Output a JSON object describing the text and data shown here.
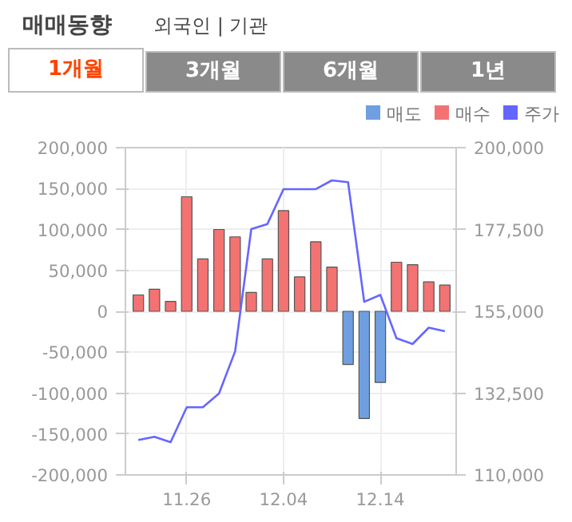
{
  "chart_data": {
    "type": "bar",
    "title": "매매동향",
    "subtitle": "외국인 | 기관",
    "annotations": [
      "1개월",
      "3개월",
      "6개월",
      "1년"
    ],
    "categories": [
      null,
      null,
      null,
      "11.26",
      null,
      null,
      null,
      null,
      null,
      "12.04",
      null,
      null,
      null,
      null,
      null,
      "12.14",
      null,
      null,
      null,
      null
    ],
    "series": [
      {
        "name": "매도",
        "color": "#6f9fe0",
        "values": [
          null,
          null,
          null,
          null,
          null,
          null,
          null,
          null,
          null,
          null,
          null,
          null,
          null,
          -65000,
          -131000,
          -87000,
          null,
          null,
          null,
          null
        ]
      },
      {
        "name": "매수",
        "color": "#f37372",
        "values": [
          20000,
          27000,
          12000,
          140000,
          64000,
          100000,
          91000,
          23000,
          64000,
          123000,
          42000,
          85000,
          54000,
          null,
          null,
          null,
          60000,
          57000,
          36000,
          32000
        ]
      },
      {
        "name": "주가",
        "type": "line",
        "axis": "y2",
        "color": "#6666ff",
        "values": [
          119600,
          120500,
          119000,
          128600,
          128600,
          132400,
          144000,
          177600,
          179000,
          188600,
          188600,
          188600,
          191000,
          190500,
          157600,
          159500,
          147600,
          146000,
          150500,
          149500
        ]
      }
    ],
    "ylim": [
      -200000,
      200000
    ],
    "yticks": [
      {
        "value": -200000,
        "label": "-200,000"
      },
      {
        "value": -150000,
        "label": "-150,000"
      },
      {
        "value": -100000,
        "label": "-100,000"
      },
      {
        "value": -50000,
        "label": "-50,000"
      },
      0,
      {
        "value": 50000,
        "label": "50,000"
      },
      {
        "value": 100000,
        "label": "100,000"
      },
      {
        "value": 150000,
        "label": "150,000"
      },
      {
        "value": 200000,
        "label": "200,000"
      }
    ],
    "y2lim": [
      110000,
      200000
    ],
    "y2ticks": [
      {
        "value": 110000,
        "label": "110,000"
      },
      {
        "value": 132500,
        "label": "132,500"
      },
      {
        "value": 155000,
        "label": "155,000"
      },
      {
        "value": 177500,
        "label": "177,500"
      },
      {
        "value": 200000,
        "label": "200,000"
      }
    ],
    "grid": true,
    "legend": "top right"
  }
}
